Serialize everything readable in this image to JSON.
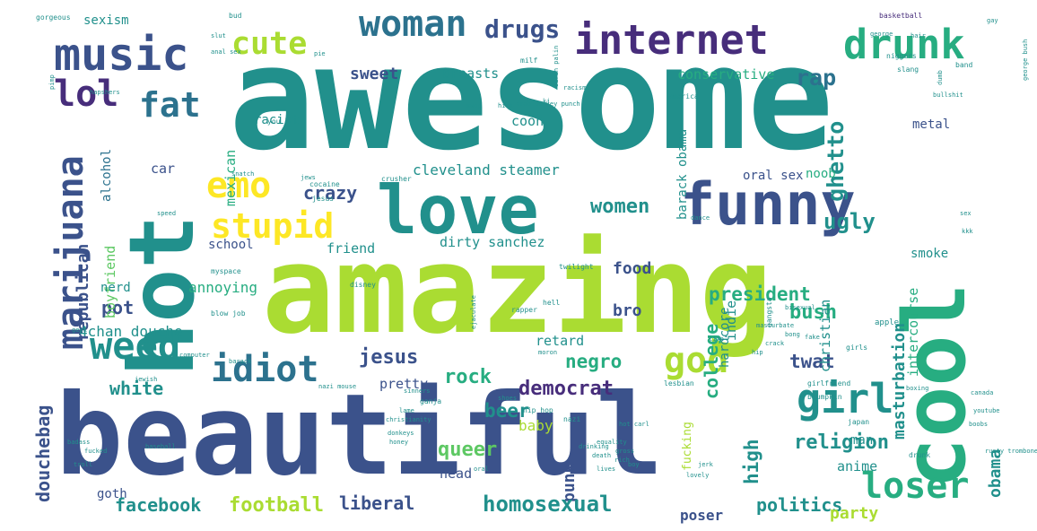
{
  "colors": {
    "background": "#ffffff",
    "purple": "#472d7b",
    "indigo": "#3b528b",
    "blue": "#2c728e",
    "teal": "#21908c",
    "green": "#27ad81",
    "lime": "#5dc863",
    "yellowgreen": "#aadc32",
    "yellow": "#fde725"
  },
  "words": [
    {
      "text": "awesome",
      "color": "teal"
    },
    {
      "text": "amazing",
      "color": "yellowgreen"
    },
    {
      "text": "beautiful",
      "color": "indigo"
    },
    {
      "text": "hot",
      "color": "teal"
    },
    {
      "text": "cool",
      "color": "green"
    },
    {
      "text": "love",
      "color": "teal"
    },
    {
      "text": "funny",
      "color": "indigo"
    },
    {
      "text": "music",
      "color": "indigo"
    },
    {
      "text": "drunk",
      "color": "green"
    },
    {
      "text": "internet",
      "color": "purple"
    },
    {
      "text": "woman",
      "color": "blue"
    },
    {
      "text": "cute",
      "color": "yellowgreen"
    },
    {
      "text": "drugs",
      "color": "indigo"
    },
    {
      "text": "lol",
      "color": "purple"
    },
    {
      "text": "fat",
      "color": "blue"
    },
    {
      "text": "emo",
      "color": "yellow"
    },
    {
      "text": "stupid",
      "color": "yellow"
    },
    {
      "text": "weed",
      "color": "teal"
    },
    {
      "text": "idiot",
      "color": "blue"
    },
    {
      "text": "marijuana",
      "color": "indigo"
    },
    {
      "text": "girl",
      "color": "teal"
    },
    {
      "text": "god",
      "color": "yellowgreen"
    },
    {
      "text": "loser",
      "color": "green"
    },
    {
      "text": "ghetto",
      "color": "teal"
    },
    {
      "text": "rap",
      "color": "blue"
    },
    {
      "text": "ugly",
      "color": "teal"
    },
    {
      "text": "crazy",
      "color": "indigo"
    },
    {
      "text": "women",
      "color": "teal"
    },
    {
      "text": "bush",
      "color": "green"
    },
    {
      "text": "republican",
      "color": "indigo"
    },
    {
      "text": "president",
      "color": "green"
    },
    {
      "text": "food",
      "color": "indigo"
    },
    {
      "text": "twat",
      "color": "indigo"
    },
    {
      "text": "masturbation",
      "color": "teal"
    },
    {
      "text": "democrat",
      "color": "purple"
    },
    {
      "text": "rock",
      "color": "green"
    },
    {
      "text": "jesus",
      "color": "indigo"
    },
    {
      "text": "beer",
      "color": "teal"
    },
    {
      "text": "white",
      "color": "teal"
    },
    {
      "text": "negro",
      "color": "green"
    },
    {
      "text": "college",
      "color": "green"
    },
    {
      "text": "high",
      "color": "teal"
    },
    {
      "text": "religion",
      "color": "teal"
    },
    {
      "text": "queer",
      "color": "lime"
    },
    {
      "text": "punk",
      "color": "indigo"
    },
    {
      "text": "obama",
      "color": "teal"
    },
    {
      "text": "douchebag",
      "color": "indigo"
    },
    {
      "text": "facebook",
      "color": "teal"
    },
    {
      "text": "football",
      "color": "yellowgreen"
    },
    {
      "text": "liberal",
      "color": "indigo"
    },
    {
      "text": "homosexual",
      "color": "teal"
    },
    {
      "text": "politics",
      "color": "teal"
    },
    {
      "text": "party",
      "color": "yellowgreen"
    },
    {
      "text": "poser",
      "color": "indigo"
    },
    {
      "text": "4chan douche",
      "color": "teal"
    },
    {
      "text": "pot",
      "color": "indigo"
    },
    {
      "text": "bro",
      "color": "indigo"
    },
    {
      "text": "sweet",
      "color": "indigo"
    },
    {
      "text": "cleveland steamer",
      "color": "teal"
    },
    {
      "text": "dirty sanchez",
      "color": "teal"
    },
    {
      "text": "oral sex",
      "color": "indigo"
    },
    {
      "text": "noob",
      "color": "green"
    },
    {
      "text": "barack obama",
      "color": "teal"
    },
    {
      "text": "alcohol",
      "color": "blue"
    },
    {
      "text": "mexican",
      "color": "green"
    },
    {
      "text": "racist",
      "color": "teal"
    },
    {
      "text": "car",
      "color": "indigo"
    },
    {
      "text": "school",
      "color": "indigo"
    },
    {
      "text": "friend",
      "color": "teal"
    },
    {
      "text": "boyfriend",
      "color": "lime"
    },
    {
      "text": "nerd",
      "color": "teal"
    },
    {
      "text": "annoying",
      "color": "green"
    },
    {
      "text": "pretty",
      "color": "indigo"
    },
    {
      "text": "baby",
      "color": "yellowgreen"
    },
    {
      "text": "retard",
      "color": "teal"
    },
    {
      "text": "hardcore",
      "color": "teal"
    },
    {
      "text": "indie",
      "color": "teal"
    },
    {
      "text": "christian",
      "color": "teal"
    },
    {
      "text": "intercourse",
      "color": "green"
    },
    {
      "text": "fucking",
      "color": "yellowgreen"
    },
    {
      "text": "head",
      "color": "indigo"
    },
    {
      "text": "anime",
      "color": "teal"
    },
    {
      "text": "goth",
      "color": "indigo"
    },
    {
      "text": "man",
      "color": "teal"
    },
    {
      "text": "smoke",
      "color": "teal"
    },
    {
      "text": "metal",
      "color": "indigo"
    },
    {
      "text": "conservative",
      "color": "green"
    },
    {
      "text": "breasts",
      "color": "teal"
    },
    {
      "text": "coon",
      "color": "teal"
    },
    {
      "text": "sexism",
      "color": "teal"
    },
    {
      "text": "basketball",
      "color": "purple"
    },
    {
      "text": "hip hop",
      "color": "teal"
    },
    {
      "text": "nazi",
      "color": "teal"
    },
    {
      "text": "japan",
      "color": "teal"
    },
    {
      "text": "sarah palin",
      "color": "teal"
    },
    {
      "text": "gorgeous",
      "color": "teal"
    },
    {
      "text": "milf",
      "color": "teal"
    },
    {
      "text": "bud",
      "color": "teal"
    },
    {
      "text": "gay",
      "color": "teal"
    },
    {
      "text": "george bush",
      "color": "teal"
    },
    {
      "text": "niggers",
      "color": "teal"
    },
    {
      "text": "band",
      "color": "teal"
    },
    {
      "text": "slang",
      "color": "teal"
    },
    {
      "text": "kj",
      "color": "teal"
    },
    {
      "text": "racism",
      "color": "teal"
    },
    {
      "text": "america",
      "color": "teal"
    },
    {
      "text": "arab donkey punch",
      "color": "teal"
    },
    {
      "text": "hapshers",
      "color": "teal"
    },
    {
      "text": "you",
      "color": "teal"
    },
    {
      "text": "jews",
      "color": "teal"
    },
    {
      "text": "snatch",
      "color": "teal"
    },
    {
      "text": "crusher",
      "color": "teal"
    },
    {
      "text": "cocaine",
      "color": "teal"
    },
    {
      "text": "jesus",
      "color": "teal"
    },
    {
      "text": "speed",
      "color": "teal"
    },
    {
      "text": "dance",
      "color": "teal"
    },
    {
      "text": "myspace",
      "color": "teal"
    },
    {
      "text": "rapper",
      "color": "teal"
    },
    {
      "text": "twilight",
      "color": "teal"
    },
    {
      "text": "disney",
      "color": "teal"
    },
    {
      "text": "hell",
      "color": "teal"
    },
    {
      "text": "blow job",
      "color": "teal"
    },
    {
      "text": "geek",
      "color": "teal"
    },
    {
      "text": "ejaculate",
      "color": "teal"
    },
    {
      "text": "gangsta",
      "color": "teal"
    },
    {
      "text": "apple",
      "color": "teal"
    },
    {
      "text": "girls",
      "color": "teal"
    },
    {
      "text": "computer",
      "color": "teal"
    },
    {
      "text": "barack",
      "color": "teal"
    },
    {
      "text": "lesbian",
      "color": "teal"
    },
    {
      "text": "girlfriend",
      "color": "teal"
    },
    {
      "text": "blumpkin",
      "color": "teal"
    },
    {
      "text": "jewish",
      "color": "teal"
    },
    {
      "text": "youtube",
      "color": "teal"
    },
    {
      "text": "boobs",
      "color": "teal"
    },
    {
      "text": "nazi mouse",
      "color": "teal"
    },
    {
      "text": "ganja",
      "color": "teal"
    },
    {
      "text": "christianity",
      "color": "teal"
    },
    {
      "text": "donkeys",
      "color": "teal"
    },
    {
      "text": "equality",
      "color": "teal"
    },
    {
      "text": "hot carl",
      "color": "teal"
    },
    {
      "text": "drinking",
      "color": "teal"
    },
    {
      "text": "gross",
      "color": "teal"
    },
    {
      "text": "rich",
      "color": "teal"
    },
    {
      "text": "drunk",
      "color": "teal"
    },
    {
      "text": "badass",
      "color": "teal"
    },
    {
      "text": "fucked",
      "color": "teal"
    },
    {
      "text": "baseball",
      "color": "teal"
    },
    {
      "text": "troll",
      "color": "teal"
    },
    {
      "text": "oral",
      "color": "teal"
    },
    {
      "text": "lovely",
      "color": "teal"
    },
    {
      "text": "honey",
      "color": "teal"
    },
    {
      "text": "rusty trombone",
      "color": "teal"
    },
    {
      "text": "boxing",
      "color": "teal"
    },
    {
      "text": "canada",
      "color": "teal"
    },
    {
      "text": "pimp",
      "color": "teal"
    },
    {
      "text": "bullshit",
      "color": "teal"
    },
    {
      "text": "dumb",
      "color": "teal"
    },
    {
      "text": "lame",
      "color": "teal"
    },
    {
      "text": "sinners",
      "color": "teal"
    },
    {
      "text": "shoes",
      "color": "teal"
    },
    {
      "text": "lives",
      "color": "teal"
    },
    {
      "text": "death",
      "color": "teal"
    },
    {
      "text": "jerk",
      "color": "teal"
    },
    {
      "text": "boy",
      "color": "teal"
    },
    {
      "text": "moron",
      "color": "teal"
    },
    {
      "text": "life",
      "color": "teal"
    },
    {
      "text": "masturbate",
      "color": "teal"
    },
    {
      "text": "crack",
      "color": "teal"
    },
    {
      "text": "bong",
      "color": "teal"
    },
    {
      "text": "fake",
      "color": "teal"
    },
    {
      "text": "hip",
      "color": "teal"
    },
    {
      "text": "sex",
      "color": "teal"
    },
    {
      "text": "kkk",
      "color": "teal"
    },
    {
      "text": "bisexual",
      "color": "teal"
    },
    {
      "text": "george",
      "color": "teal"
    },
    {
      "text": "hair",
      "color": "teal"
    },
    {
      "text": "anal sex",
      "color": "teal"
    },
    {
      "text": "slut",
      "color": "teal"
    },
    {
      "text": "pie",
      "color": "teal"
    },
    {
      "text": "swag",
      "color": "teal"
    },
    {
      "text": "hick",
      "color": "teal"
    }
  ]
}
